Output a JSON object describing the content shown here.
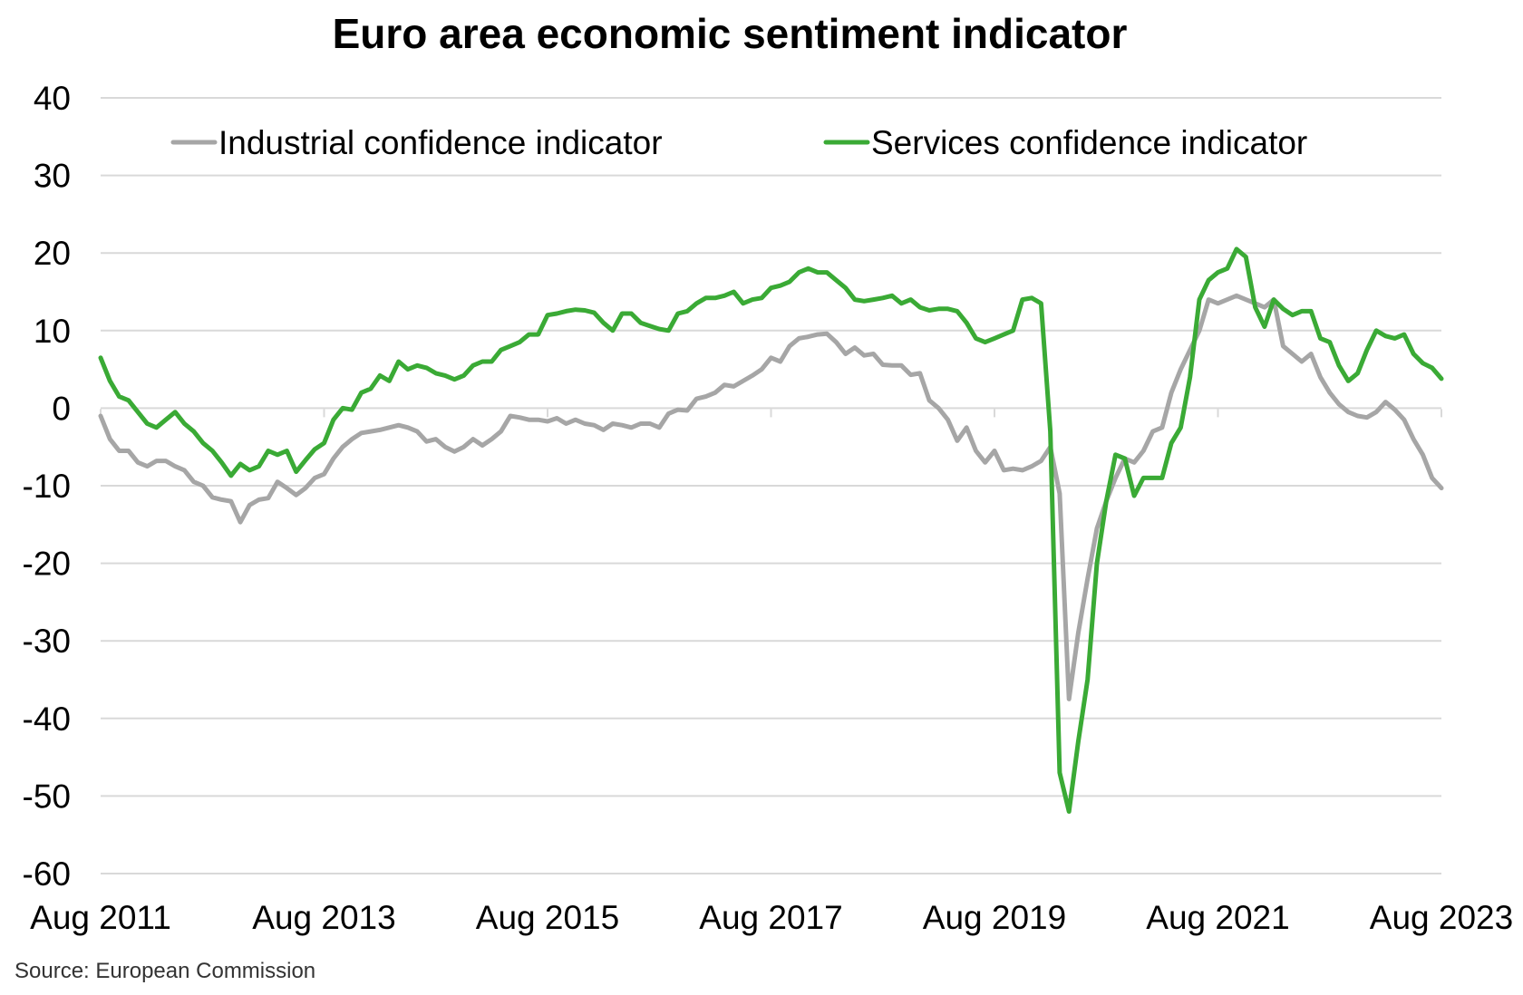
{
  "chart_data": {
    "type": "line",
    "title": "Euro area economic sentiment indicator",
    "xlabel": "",
    "ylabel": "",
    "ylim": [
      -60,
      40
    ],
    "yticks": [
      40,
      30,
      20,
      10,
      0,
      -10,
      -20,
      -30,
      -40,
      -50,
      -60
    ],
    "xlim": [
      "2011-08",
      "2023-08"
    ],
    "xticks": [
      "Aug 2011",
      "Aug 2013",
      "Aug 2015",
      "Aug 2017",
      "Aug 2019",
      "Aug 2021",
      "Aug 2023"
    ],
    "grid": true,
    "legend_position": "top",
    "source": "Source: European Commission",
    "series": [
      {
        "name": "Industrial confidence indicator",
        "color": "#a6a6a6",
        "points": [
          [
            "2011-08",
            -1
          ],
          [
            "2011-09",
            -4
          ],
          [
            "2011-10",
            -5.5
          ],
          [
            "2011-11",
            -5.5
          ],
          [
            "2011-12",
            -7
          ],
          [
            "2012-01",
            -7.5
          ],
          [
            "2012-02",
            -6.8
          ],
          [
            "2012-03",
            -6.8
          ],
          [
            "2012-04",
            -7.5
          ],
          [
            "2012-05",
            -8
          ],
          [
            "2012-06",
            -9.5
          ],
          [
            "2012-07",
            -10
          ],
          [
            "2012-08",
            -11.5
          ],
          [
            "2012-09",
            -11.8
          ],
          [
            "2012-10",
            -12
          ],
          [
            "2012-11",
            -14.7
          ],
          [
            "2012-12",
            -12.5
          ],
          [
            "2013-01",
            -11.8
          ],
          [
            "2013-02",
            -11.6
          ],
          [
            "2013-03",
            -9.5
          ],
          [
            "2013-04",
            -10.3
          ],
          [
            "2013-05",
            -11.2
          ],
          [
            "2013-06",
            -10.3
          ],
          [
            "2013-07",
            -9
          ],
          [
            "2013-08",
            -8.5
          ],
          [
            "2013-09",
            -6.5
          ],
          [
            "2013-10",
            -5
          ],
          [
            "2013-11",
            -4
          ],
          [
            "2013-12",
            -3.2
          ],
          [
            "2014-01",
            -3
          ],
          [
            "2014-02",
            -2.8
          ],
          [
            "2014-03",
            -2.5
          ],
          [
            "2014-04",
            -2.2
          ],
          [
            "2014-05",
            -2.5
          ],
          [
            "2014-06",
            -3
          ],
          [
            "2014-07",
            -4.3
          ],
          [
            "2014-08",
            -4
          ],
          [
            "2014-09",
            -5
          ],
          [
            "2014-10",
            -5.6
          ],
          [
            "2014-11",
            -5
          ],
          [
            "2014-12",
            -4
          ],
          [
            "2015-01",
            -4.8
          ],
          [
            "2015-02",
            -4
          ],
          [
            "2015-03",
            -3
          ],
          [
            "2015-04",
            -1
          ],
          [
            "2015-05",
            -1.2
          ],
          [
            "2015-06",
            -1.5
          ],
          [
            "2015-07",
            -1.5
          ],
          [
            "2015-08",
            -1.7
          ],
          [
            "2015-09",
            -1.3
          ],
          [
            "2015-10",
            -2
          ],
          [
            "2015-11",
            -1.5
          ],
          [
            "2015-12",
            -2
          ],
          [
            "2016-01",
            -2.2
          ],
          [
            "2016-02",
            -2.8
          ],
          [
            "2016-03",
            -2
          ],
          [
            "2016-04",
            -2.2
          ],
          [
            "2016-05",
            -2.5
          ],
          [
            "2016-06",
            -2
          ],
          [
            "2016-07",
            -2
          ],
          [
            "2016-08",
            -2.5
          ],
          [
            "2016-09",
            -0.7
          ],
          [
            "2016-10",
            -0.2
          ],
          [
            "2016-11",
            -0.3
          ],
          [
            "2016-12",
            1.2
          ],
          [
            "2017-01",
            1.5
          ],
          [
            "2017-02",
            2
          ],
          [
            "2017-03",
            3
          ],
          [
            "2017-04",
            2.8
          ],
          [
            "2017-05",
            3.5
          ],
          [
            "2017-06",
            4.2
          ],
          [
            "2017-07",
            5
          ],
          [
            "2017-08",
            6.5
          ],
          [
            "2017-09",
            6
          ],
          [
            "2017-10",
            8
          ],
          [
            "2017-11",
            9
          ],
          [
            "2017-12",
            9.2
          ],
          [
            "2018-01",
            9.5
          ],
          [
            "2018-02",
            9.6
          ],
          [
            "2018-03",
            8.5
          ],
          [
            "2018-04",
            7
          ],
          [
            "2018-05",
            7.8
          ],
          [
            "2018-06",
            6.8
          ],
          [
            "2018-07",
            7
          ],
          [
            "2018-08",
            5.6
          ],
          [
            "2018-09",
            5.5
          ],
          [
            "2018-10",
            5.5
          ],
          [
            "2018-11",
            4.3
          ],
          [
            "2018-12",
            4.5
          ],
          [
            "2019-01",
            1
          ],
          [
            "2019-02",
            0
          ],
          [
            "2019-03",
            -1.5
          ],
          [
            "2019-04",
            -4.2
          ],
          [
            "2019-05",
            -2.5
          ],
          [
            "2019-06",
            -5.5
          ],
          [
            "2019-07",
            -7
          ],
          [
            "2019-08",
            -5.5
          ],
          [
            "2019-09",
            -8
          ],
          [
            "2019-10",
            -7.8
          ],
          [
            "2019-11",
            -8
          ],
          [
            "2019-12",
            -7.5
          ],
          [
            "2020-01",
            -6.8
          ],
          [
            "2020-02",
            -5
          ],
          [
            "2020-03",
            -11
          ],
          [
            "2020-04",
            -37.5
          ],
          [
            "2020-05",
            -29
          ],
          [
            "2020-06",
            -22
          ],
          [
            "2020-07",
            -15.5
          ],
          [
            "2020-08",
            -12
          ],
          [
            "2020-09",
            -9
          ],
          [
            "2020-10",
            -6.5
          ],
          [
            "2020-11",
            -7
          ],
          [
            "2020-12",
            -5.5
          ],
          [
            "2021-01",
            -3
          ],
          [
            "2021-02",
            -2.5
          ],
          [
            "2021-03",
            2
          ],
          [
            "2021-04",
            5
          ],
          [
            "2021-05",
            7.5
          ],
          [
            "2021-06",
            10
          ],
          [
            "2021-07",
            14
          ],
          [
            "2021-08",
            13.5
          ],
          [
            "2021-09",
            14
          ],
          [
            "2021-10",
            14.5
          ],
          [
            "2021-11",
            14
          ],
          [
            "2021-12",
            13.5
          ],
          [
            "2022-01",
            13
          ],
          [
            "2022-02",
            14
          ],
          [
            "2022-03",
            8
          ],
          [
            "2022-04",
            7
          ],
          [
            "2022-05",
            6
          ],
          [
            "2022-06",
            7
          ],
          [
            "2022-07",
            4
          ],
          [
            "2022-08",
            2
          ],
          [
            "2022-09",
            0.5
          ],
          [
            "2022-10",
            -0.5
          ],
          [
            "2022-11",
            -1
          ],
          [
            "2022-12",
            -1.2
          ],
          [
            "2023-01",
            -0.5
          ],
          [
            "2023-02",
            0.8
          ],
          [
            "2023-03",
            -0.2
          ],
          [
            "2023-04",
            -1.5
          ],
          [
            "2023-05",
            -4
          ],
          [
            "2023-06",
            -6
          ],
          [
            "2023-07",
            -9
          ],
          [
            "2023-08",
            -10.3
          ]
        ]
      },
      {
        "name": "Services confidence indicator",
        "color": "#3aaa35",
        "points": [
          [
            "2011-08",
            6.5
          ],
          [
            "2011-09",
            3.5
          ],
          [
            "2011-10",
            1.5
          ],
          [
            "2011-11",
            1
          ],
          [
            "2011-12",
            -0.5
          ],
          [
            "2012-01",
            -2
          ],
          [
            "2012-02",
            -2.5
          ],
          [
            "2012-03",
            -1.5
          ],
          [
            "2012-04",
            -0.5
          ],
          [
            "2012-05",
            -2
          ],
          [
            "2012-06",
            -3
          ],
          [
            "2012-07",
            -4.5
          ],
          [
            "2012-08",
            -5.5
          ],
          [
            "2012-09",
            -7
          ],
          [
            "2012-10",
            -8.7
          ],
          [
            "2012-11",
            -7.2
          ],
          [
            "2012-12",
            -8
          ],
          [
            "2013-01",
            -7.5
          ],
          [
            "2013-02",
            -5.5
          ],
          [
            "2013-03",
            -6
          ],
          [
            "2013-04",
            -5.5
          ],
          [
            "2013-05",
            -8.2
          ],
          [
            "2013-06",
            -6.7
          ],
          [
            "2013-07",
            -5.3
          ],
          [
            "2013-08",
            -4.5
          ],
          [
            "2013-09",
            -1.5
          ],
          [
            "2013-10",
            0
          ],
          [
            "2013-11",
            -0.2
          ],
          [
            "2013-12",
            2
          ],
          [
            "2014-01",
            2.5
          ],
          [
            "2014-02",
            4.2
          ],
          [
            "2014-03",
            3.5
          ],
          [
            "2014-04",
            6
          ],
          [
            "2014-05",
            5
          ],
          [
            "2014-06",
            5.5
          ],
          [
            "2014-07",
            5.2
          ],
          [
            "2014-08",
            4.5
          ],
          [
            "2014-09",
            4.2
          ],
          [
            "2014-10",
            3.7
          ],
          [
            "2014-11",
            4.2
          ],
          [
            "2014-12",
            5.5
          ],
          [
            "2015-01",
            6
          ],
          [
            "2015-02",
            6
          ],
          [
            "2015-03",
            7.5
          ],
          [
            "2015-04",
            8
          ],
          [
            "2015-05",
            8.5
          ],
          [
            "2015-06",
            9.5
          ],
          [
            "2015-07",
            9.5
          ],
          [
            "2015-08",
            12
          ],
          [
            "2015-09",
            12.2
          ],
          [
            "2015-10",
            12.5
          ],
          [
            "2015-11",
            12.7
          ],
          [
            "2015-12",
            12.6
          ],
          [
            "2016-01",
            12.3
          ],
          [
            "2016-02",
            11
          ],
          [
            "2016-03",
            10
          ],
          [
            "2016-04",
            12.2
          ],
          [
            "2016-05",
            12.2
          ],
          [
            "2016-06",
            11
          ],
          [
            "2016-07",
            10.6
          ],
          [
            "2016-08",
            10.2
          ],
          [
            "2016-09",
            10
          ],
          [
            "2016-10",
            12.2
          ],
          [
            "2016-11",
            12.5
          ],
          [
            "2016-12",
            13.5
          ],
          [
            "2017-01",
            14.2
          ],
          [
            "2017-02",
            14.2
          ],
          [
            "2017-03",
            14.5
          ],
          [
            "2017-04",
            15
          ],
          [
            "2017-05",
            13.5
          ],
          [
            "2017-06",
            14
          ],
          [
            "2017-07",
            14.2
          ],
          [
            "2017-08",
            15.5
          ],
          [
            "2017-09",
            15.8
          ],
          [
            "2017-10",
            16.3
          ],
          [
            "2017-11",
            17.5
          ],
          [
            "2017-12",
            18
          ],
          [
            "2018-01",
            17.5
          ],
          [
            "2018-02",
            17.5
          ],
          [
            "2018-03",
            16.5
          ],
          [
            "2018-04",
            15.5
          ],
          [
            "2018-05",
            14
          ],
          [
            "2018-06",
            13.8
          ],
          [
            "2018-07",
            14
          ],
          [
            "2018-08",
            14.2
          ],
          [
            "2018-09",
            14.5
          ],
          [
            "2018-10",
            13.5
          ],
          [
            "2018-11",
            14
          ],
          [
            "2018-12",
            13
          ],
          [
            "2019-01",
            12.6
          ],
          [
            "2019-02",
            12.8
          ],
          [
            "2019-03",
            12.8
          ],
          [
            "2019-04",
            12.5
          ],
          [
            "2019-05",
            11
          ],
          [
            "2019-06",
            9
          ],
          [
            "2019-07",
            8.5
          ],
          [
            "2019-08",
            9
          ],
          [
            "2019-09",
            9.5
          ],
          [
            "2019-10",
            10
          ],
          [
            "2019-11",
            14
          ],
          [
            "2019-12",
            14.2
          ],
          [
            "2020-01",
            13.5
          ],
          [
            "2020-02",
            -3
          ],
          [
            "2020-03",
            -47
          ],
          [
            "2020-04",
            -52
          ],
          [
            "2020-05",
            -43
          ],
          [
            "2020-06",
            -35
          ],
          [
            "2020-07",
            -20
          ],
          [
            "2020-08",
            -12
          ],
          [
            "2020-09",
            -6
          ],
          [
            "2020-10",
            -6.5
          ],
          [
            "2020-11",
            -11.3
          ],
          [
            "2020-12",
            -9
          ],
          [
            "2021-01",
            -9
          ],
          [
            "2021-02",
            -9
          ],
          [
            "2021-03",
            -4.5
          ],
          [
            "2021-04",
            -2.5
          ],
          [
            "2021-05",
            4
          ],
          [
            "2021-06",
            14
          ],
          [
            "2021-07",
            16.5
          ],
          [
            "2021-08",
            17.5
          ],
          [
            "2021-09",
            18
          ],
          [
            "2021-10",
            20.5
          ],
          [
            "2021-11",
            19.5
          ],
          [
            "2021-12",
            13
          ],
          [
            "2022-01",
            10.5
          ],
          [
            "2022-02",
            14
          ],
          [
            "2022-03",
            12.8
          ],
          [
            "2022-04",
            12
          ],
          [
            "2022-05",
            12.5
          ],
          [
            "2022-06",
            12.5
          ],
          [
            "2022-07",
            9
          ],
          [
            "2022-08",
            8.5
          ],
          [
            "2022-09",
            5.5
          ],
          [
            "2022-10",
            3.5
          ],
          [
            "2022-11",
            4.5
          ],
          [
            "2022-12",
            7.5
          ],
          [
            "2023-01",
            10
          ],
          [
            "2023-02",
            9.3
          ],
          [
            "2023-03",
            9
          ],
          [
            "2023-04",
            9.5
          ],
          [
            "2023-05",
            7
          ],
          [
            "2023-06",
            5.8
          ],
          [
            "2023-07",
            5.2
          ],
          [
            "2023-08",
            3.8
          ]
        ]
      }
    ]
  }
}
